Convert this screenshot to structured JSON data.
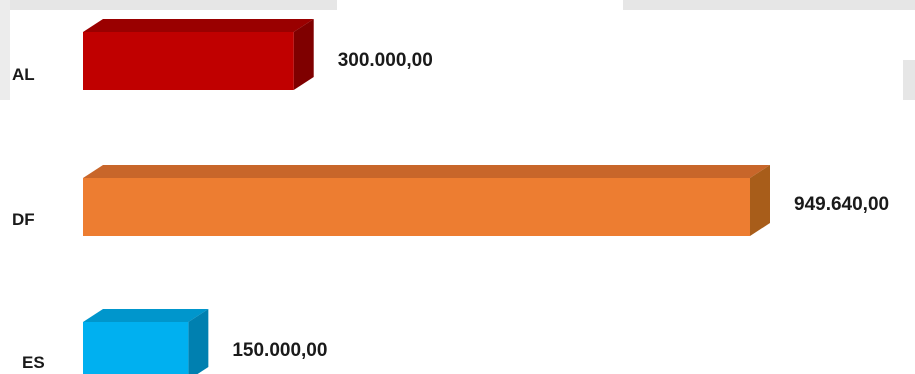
{
  "chart_data": {
    "type": "bar",
    "orientation": "horizontal",
    "style": "3d",
    "categories": [
      "AL",
      "DF",
      "ES"
    ],
    "values": [
      300000.0,
      949640.0,
      150000.0
    ],
    "value_labels": [
      "300.000,00",
      "949.640,00",
      "150.000,00"
    ],
    "colors": [
      "#c00000",
      "#ed7d31",
      "#00b0f0"
    ],
    "side_colors": [
      "#7f0000",
      "#a85d1a",
      "#0080b0"
    ],
    "top_colors": [
      "#9a0000",
      "#c8662a",
      "#0096cc"
    ],
    "xlim": [
      0,
      1000000
    ],
    "grid": false,
    "legend": "none",
    "title": "",
    "xlabel": "",
    "ylabel": ""
  }
}
